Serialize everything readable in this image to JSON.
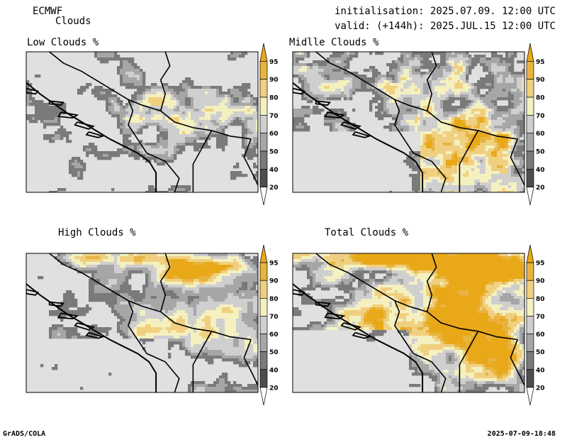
{
  "header": {
    "model": "ECMWF",
    "product": "Clouds",
    "init": "initialisation: 2025.07.09. 12:00 UTC",
    "valid": "valid: (+144h): 2025.JUL.15 12:00 UTC"
  },
  "panels": [
    {
      "title": "Low Clouds %",
      "field": "low"
    },
    {
      "title": "Midlle Clouds %",
      "field": "mid"
    },
    {
      "title": "High Clouds %",
      "field": "high"
    },
    {
      "title": "Total Clouds %",
      "field": "total"
    }
  ],
  "colorbar": {
    "levels": [
      20,
      40,
      50,
      60,
      70,
      80,
      90,
      95
    ],
    "colors": [
      "#ffffff",
      "#4d4d4d",
      "#7a7a7a",
      "#a6a6a6",
      "#cfcfcf",
      "#f4f0c0",
      "#f0d080",
      "#e8b440",
      "#e8a818"
    ]
  },
  "background_color": "#e0e0e0",
  "footer": {
    "left": "GrADS/COLA",
    "right": "2025-07-09-18:48"
  }
}
